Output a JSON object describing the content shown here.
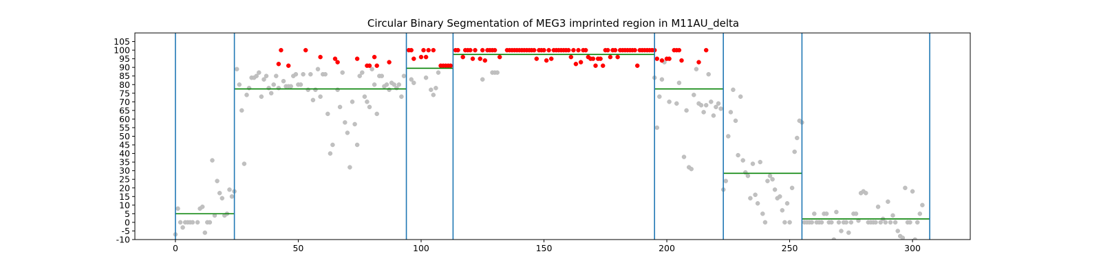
{
  "chart_data": {
    "type": "scatter",
    "title": "Circular Binary Segmentation of MEG3 imprinted region in M11AU_delta",
    "xlabel": "",
    "ylabel": "",
    "xlim": [
      -16.5,
      323.5
    ],
    "ylim": [
      -10,
      110
    ],
    "x_ticks": [
      0,
      50,
      100,
      150,
      200,
      250,
      300
    ],
    "y_ticks": [
      -10,
      -5,
      0,
      5,
      10,
      15,
      20,
      25,
      30,
      35,
      40,
      45,
      50,
      55,
      60,
      65,
      70,
      75,
      80,
      85,
      90,
      95,
      100,
      105
    ],
    "grid": false,
    "legend": "none",
    "colors": {
      "point_default": "#c0c0c0",
      "point_highlight": "#ff0000",
      "segment_mean": "#008000",
      "breakpoint": "#1f77b4"
    },
    "breakpoints": [
      0,
      24,
      94,
      113,
      195,
      223,
      255,
      307
    ],
    "segments": [
      {
        "x_start": 0,
        "x_end": 24,
        "mean": 5
      },
      {
        "x_start": 24,
        "x_end": 94,
        "mean": 77.5
      },
      {
        "x_start": 94,
        "x_end": 113,
        "mean": 89.5
      },
      {
        "x_start": 113,
        "x_end": 195,
        "mean": 97.5
      },
      {
        "x_start": 195,
        "x_end": 223,
        "mean": 77.5
      },
      {
        "x_start": 223,
        "x_end": 255,
        "mean": 28.5
      },
      {
        "x_start": 255,
        "x_end": 307,
        "mean": 2
      }
    ],
    "series": [
      {
        "color": "#c0c0c0",
        "points": [
          [
            0,
            -7
          ],
          [
            1,
            8
          ],
          [
            2,
            0
          ],
          [
            3,
            -3
          ],
          [
            4,
            0
          ],
          [
            5,
            0
          ],
          [
            6,
            0
          ],
          [
            7,
            0
          ],
          [
            9,
            0
          ],
          [
            10,
            8
          ],
          [
            11,
            9
          ],
          [
            12,
            -6
          ],
          [
            13,
            0
          ],
          [
            14,
            0
          ],
          [
            15,
            36
          ],
          [
            16,
            4
          ],
          [
            17,
            24
          ],
          [
            18,
            17
          ],
          [
            19,
            14
          ],
          [
            20,
            4
          ],
          [
            21,
            5
          ],
          [
            22,
            19
          ],
          [
            23,
            15
          ],
          [
            24,
            18
          ],
          [
            25,
            89
          ],
          [
            26,
            80
          ],
          [
            27,
            65
          ],
          [
            28,
            34
          ],
          [
            29,
            74
          ],
          [
            30,
            78
          ],
          [
            31,
            84
          ],
          [
            32,
            84
          ],
          [
            33,
            85
          ],
          [
            34,
            87
          ],
          [
            35,
            73
          ],
          [
            36,
            83
          ],
          [
            37,
            85
          ],
          [
            38,
            78
          ],
          [
            39,
            75
          ],
          [
            40,
            80
          ],
          [
            41,
            85
          ],
          [
            42,
            78
          ],
          [
            44,
            82
          ],
          [
            45,
            79
          ],
          [
            46,
            79
          ],
          [
            47,
            79
          ],
          [
            48,
            85
          ],
          [
            49,
            86
          ],
          [
            50,
            80
          ],
          [
            51,
            80
          ],
          [
            52,
            86
          ],
          [
            54,
            77
          ],
          [
            55,
            86
          ],
          [
            56,
            71
          ],
          [
            57,
            77
          ],
          [
            58,
            89
          ],
          [
            59,
            73
          ],
          [
            60,
            86
          ],
          [
            61,
            86
          ],
          [
            62,
            63
          ],
          [
            63,
            40
          ],
          [
            64,
            45
          ],
          [
            66,
            77
          ],
          [
            67,
            67
          ],
          [
            68,
            87
          ],
          [
            69,
            58
          ],
          [
            70,
            52
          ],
          [
            71,
            32
          ],
          [
            72,
            70
          ],
          [
            73,
            57
          ],
          [
            74,
            45
          ],
          [
            75,
            85
          ],
          [
            76,
            87
          ],
          [
            77,
            73
          ],
          [
            78,
            70
          ],
          [
            79,
            67
          ],
          [
            80,
            89
          ],
          [
            81,
            80
          ],
          [
            82,
            63
          ],
          [
            83,
            85
          ],
          [
            84,
            85
          ],
          [
            85,
            79
          ],
          [
            86,
            80
          ],
          [
            87,
            77
          ],
          [
            88,
            81
          ],
          [
            89,
            80
          ],
          [
            90,
            78
          ],
          [
            91,
            80
          ],
          [
            92,
            73
          ],
          [
            93,
            85
          ],
          [
            96,
            83
          ],
          [
            97,
            81
          ],
          [
            102,
            84
          ],
          [
            104,
            77
          ],
          [
            105,
            74
          ],
          [
            106,
            78
          ],
          [
            107,
            87
          ],
          [
            125,
            83
          ],
          [
            129,
            87
          ],
          [
            130,
            87
          ],
          [
            131,
            87
          ],
          [
            195,
            84
          ],
          [
            196,
            55
          ],
          [
            197,
            73
          ],
          [
            198,
            83
          ],
          [
            199,
            93
          ],
          [
            201,
            70
          ],
          [
            204,
            69
          ],
          [
            205,
            81
          ],
          [
            207,
            38
          ],
          [
            208,
            65
          ],
          [
            209,
            32
          ],
          [
            210,
            31
          ],
          [
            211,
            74
          ],
          [
            212,
            89
          ],
          [
            213,
            69
          ],
          [
            214,
            68
          ],
          [
            215,
            64
          ],
          [
            216,
            68
          ],
          [
            217,
            86
          ],
          [
            218,
            70
          ],
          [
            219,
            62
          ],
          [
            220,
            67
          ],
          [
            221,
            69
          ],
          [
            222,
            66
          ],
          [
            223,
            19
          ],
          [
            224,
            24
          ],
          [
            225,
            50
          ],
          [
            226,
            64
          ],
          [
            227,
            77
          ],
          [
            228,
            59
          ],
          [
            229,
            39
          ],
          [
            230,
            73
          ],
          [
            231,
            36
          ],
          [
            232,
            29
          ],
          [
            233,
            27
          ],
          [
            234,
            14
          ],
          [
            235,
            34
          ],
          [
            236,
            16
          ],
          [
            237,
            11
          ],
          [
            238,
            35
          ],
          [
            239,
            5
          ],
          [
            240,
            0
          ],
          [
            241,
            24
          ],
          [
            242,
            27
          ],
          [
            243,
            25
          ],
          [
            244,
            19
          ],
          [
            245,
            14
          ],
          [
            246,
            15
          ],
          [
            247,
            7
          ],
          [
            248,
            0
          ],
          [
            249,
            11
          ],
          [
            250,
            0
          ],
          [
            251,
            20
          ],
          [
            252,
            41
          ],
          [
            253,
            49
          ],
          [
            254,
            59
          ],
          [
            255,
            58
          ],
          [
            256,
            0
          ],
          [
            257,
            0
          ],
          [
            258,
            0
          ],
          [
            259,
            0
          ],
          [
            260,
            5
          ],
          [
            261,
            0
          ],
          [
            262,
            0
          ],
          [
            263,
            0
          ],
          [
            264,
            5
          ],
          [
            265,
            5
          ],
          [
            266,
            0
          ],
          [
            267,
            0
          ],
          [
            268,
            -10
          ],
          [
            269,
            6
          ],
          [
            270,
            0
          ],
          [
            271,
            -5
          ],
          [
            272,
            0
          ],
          [
            273,
            0
          ],
          [
            274,
            -6
          ],
          [
            275,
            0
          ],
          [
            276,
            5
          ],
          [
            277,
            5
          ],
          [
            278,
            1
          ],
          [
            279,
            17
          ],
          [
            280,
            18
          ],
          [
            281,
            17
          ],
          [
            282,
            0
          ],
          [
            283,
            0
          ],
          [
            284,
            0
          ],
          [
            285,
            0
          ],
          [
            286,
            9
          ],
          [
            287,
            0
          ],
          [
            288,
            2
          ],
          [
            289,
            0
          ],
          [
            290,
            12
          ],
          [
            291,
            0
          ],
          [
            292,
            4
          ],
          [
            293,
            0
          ],
          [
            294,
            -5
          ],
          [
            295,
            -8
          ],
          [
            296,
            -9
          ],
          [
            297,
            20
          ],
          [
            298,
            0
          ],
          [
            299,
            0
          ],
          [
            300,
            18
          ],
          [
            301,
            -10
          ],
          [
            302,
            0
          ],
          [
            303,
            5
          ],
          [
            304,
            10
          ]
        ]
      },
      {
        "color": "#ff0000",
        "points": [
          [
            42,
            92
          ],
          [
            43,
            100
          ],
          [
            46,
            91
          ],
          [
            53,
            100
          ],
          [
            59,
            96
          ],
          [
            65,
            95
          ],
          [
            66,
            93
          ],
          [
            74,
            95
          ],
          [
            78,
            91
          ],
          [
            79,
            91
          ],
          [
            81,
            96
          ],
          [
            82,
            91
          ],
          [
            87,
            93
          ],
          [
            95,
            100
          ],
          [
            96,
            100
          ],
          [
            97,
            95
          ],
          [
            100,
            96
          ],
          [
            101,
            100
          ],
          [
            102,
            96
          ],
          [
            103,
            100
          ],
          [
            105,
            100
          ],
          [
            108,
            91
          ],
          [
            109,
            91
          ],
          [
            110,
            91
          ],
          [
            111,
            91
          ],
          [
            112,
            91
          ],
          [
            114,
            100
          ],
          [
            115,
            100
          ],
          [
            117,
            96
          ],
          [
            118,
            100
          ],
          [
            119,
            100
          ],
          [
            120,
            100
          ],
          [
            121,
            95
          ],
          [
            122,
            100
          ],
          [
            124,
            95
          ],
          [
            125,
            100
          ],
          [
            126,
            94
          ],
          [
            127,
            100
          ],
          [
            128,
            100
          ],
          [
            129,
            100
          ],
          [
            130,
            100
          ],
          [
            132,
            96
          ],
          [
            135,
            100
          ],
          [
            136,
            100
          ],
          [
            137,
            100
          ],
          [
            138,
            100
          ],
          [
            139,
            100
          ],
          [
            140,
            100
          ],
          [
            141,
            100
          ],
          [
            142,
            100
          ],
          [
            143,
            100
          ],
          [
            144,
            100
          ],
          [
            145,
            100
          ],
          [
            146,
            100
          ],
          [
            147,
            95
          ],
          [
            148,
            100
          ],
          [
            149,
            100
          ],
          [
            150,
            100
          ],
          [
            151,
            94
          ],
          [
            152,
            100
          ],
          [
            153,
            95
          ],
          [
            154,
            100
          ],
          [
            155,
            100
          ],
          [
            156,
            100
          ],
          [
            157,
            100
          ],
          [
            158,
            100
          ],
          [
            159,
            100
          ],
          [
            160,
            100
          ],
          [
            161,
            96
          ],
          [
            162,
            100
          ],
          [
            163,
            92
          ],
          [
            164,
            100
          ],
          [
            165,
            93
          ],
          [
            166,
            100
          ],
          [
            167,
            100
          ],
          [
            168,
            96
          ],
          [
            169,
            95
          ],
          [
            170,
            95
          ],
          [
            171,
            91
          ],
          [
            172,
            95
          ],
          [
            173,
            95
          ],
          [
            174,
            91
          ],
          [
            175,
            100
          ],
          [
            176,
            100
          ],
          [
            177,
            96
          ],
          [
            178,
            100
          ],
          [
            179,
            100
          ],
          [
            180,
            96
          ],
          [
            181,
            100
          ],
          [
            182,
            100
          ],
          [
            183,
            100
          ],
          [
            184,
            100
          ],
          [
            185,
            100
          ],
          [
            186,
            100
          ],
          [
            187,
            100
          ],
          [
            188,
            91
          ],
          [
            189,
            100
          ],
          [
            190,
            100
          ],
          [
            191,
            100
          ],
          [
            192,
            100
          ],
          [
            193,
            100
          ],
          [
            194,
            100
          ],
          [
            195,
            100
          ],
          [
            196,
            95
          ],
          [
            198,
            94
          ],
          [
            200,
            95
          ],
          [
            201,
            95
          ],
          [
            203,
            100
          ],
          [
            204,
            100
          ],
          [
            205,
            100
          ],
          [
            206,
            94
          ],
          [
            213,
            93
          ],
          [
            216,
            100
          ]
        ]
      }
    ]
  }
}
